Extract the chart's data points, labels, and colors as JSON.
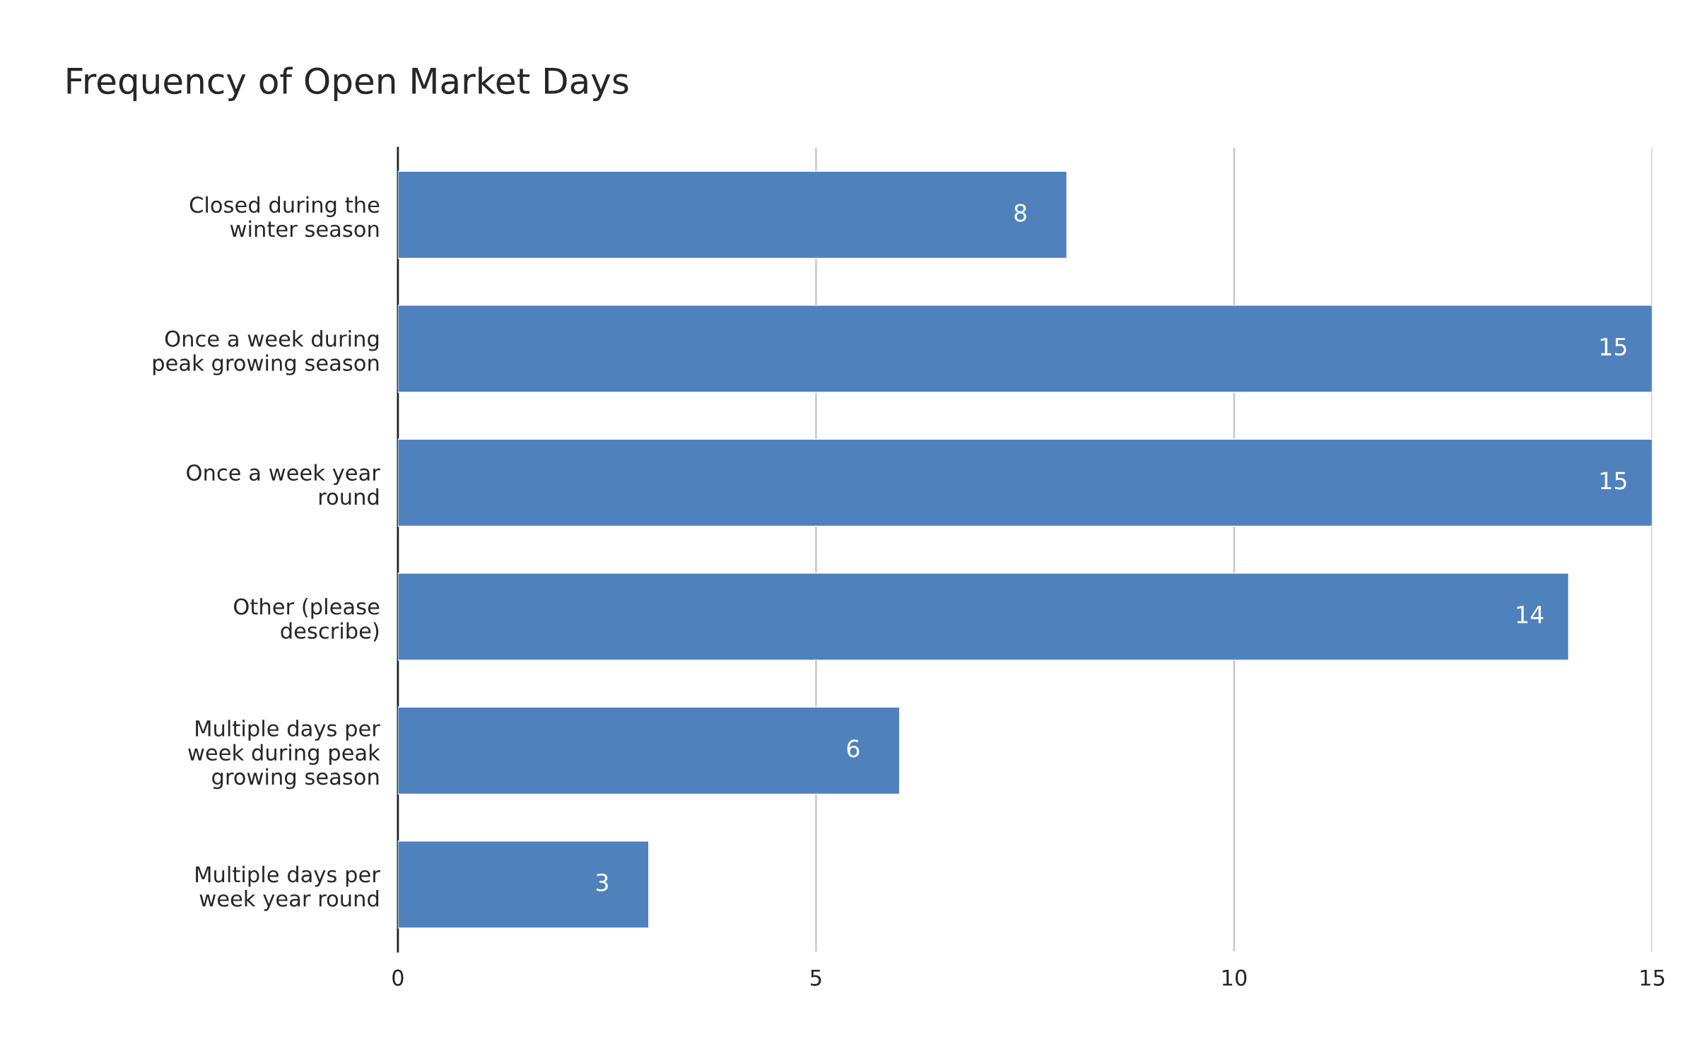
{
  "chart_data": {
    "type": "bar",
    "orientation": "horizontal",
    "title": "Frequency of Open Market Days",
    "categories": [
      "Closed during the\nwinter season",
      "Once a week during\npeak growing season",
      "Once a week year\nround",
      "Other (please\ndescribe)",
      "Multiple days per\nweek during peak\ngrowing season",
      "Multiple days per\nweek year round"
    ],
    "values": [
      8,
      15,
      15,
      14,
      6,
      3
    ],
    "color": "#4f81bd",
    "xlim": [
      0,
      15
    ],
    "xticks": [
      0,
      5,
      10,
      15
    ],
    "grid": "x",
    "data_labels": true,
    "legend": false
  }
}
